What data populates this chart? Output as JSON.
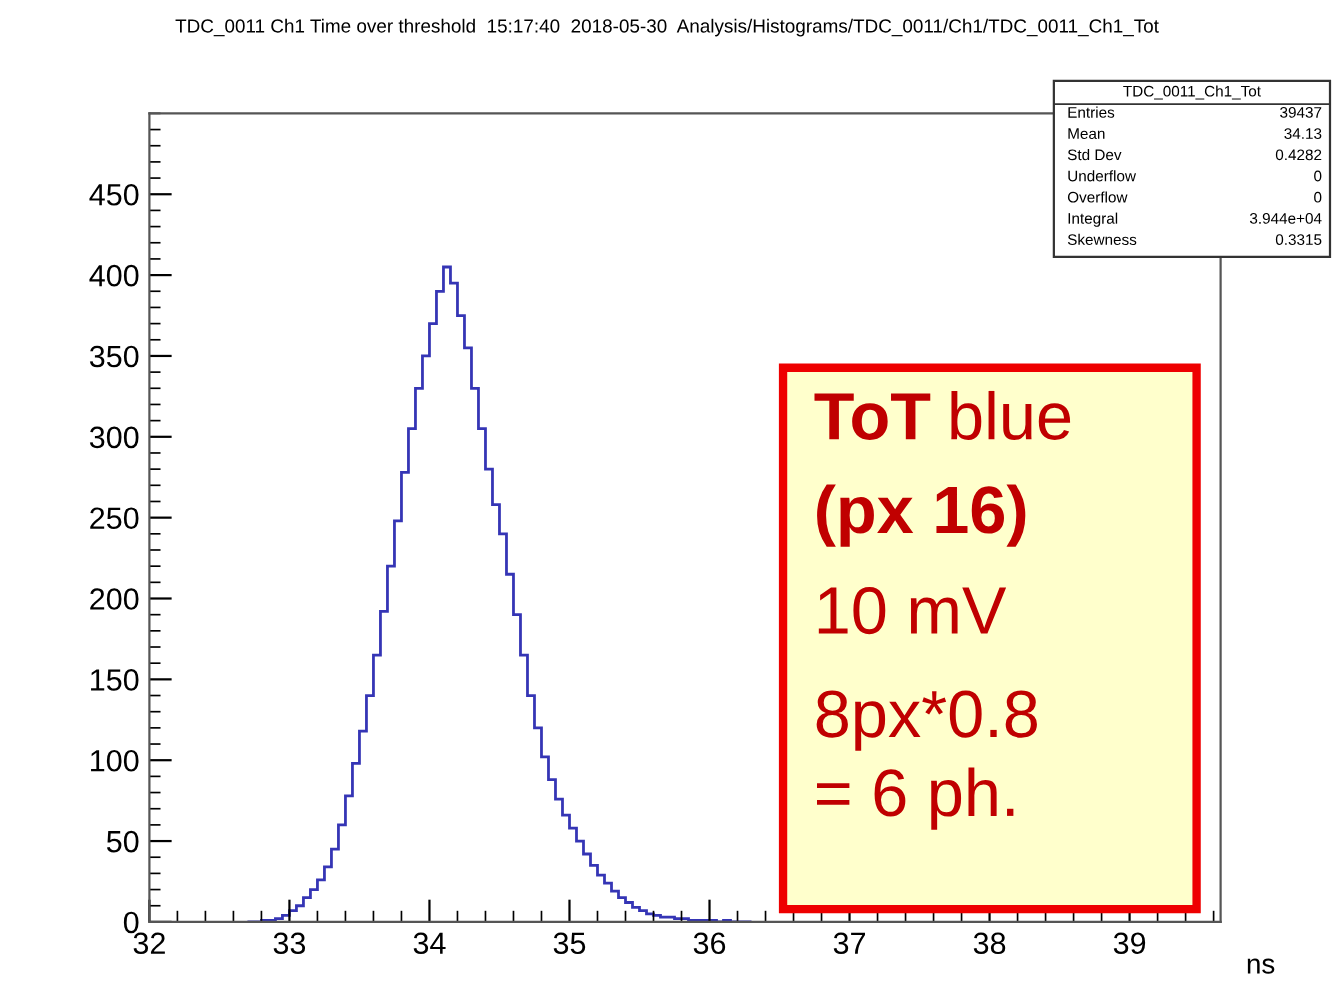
{
  "chart_data": {
    "type": "histogram",
    "title": "TDC_0011 Ch1 Time over threshold  15:17:40  2018-05-30  Analysis/Histograms/TDC_0011/Ch1/TDC_0011_Ch1_Tot",
    "xlabel": "ns",
    "bins": [
      32.7,
      32.75,
      32.8,
      32.85,
      32.9,
      32.95,
      33.0,
      33.05,
      33.1,
      33.15,
      33.2,
      33.25,
      33.3,
      33.35,
      33.4,
      33.45,
      33.5,
      33.55,
      33.6,
      33.65,
      33.7,
      33.75,
      33.8,
      33.85,
      33.9,
      33.95,
      34.0,
      34.05,
      34.1,
      34.15,
      34.2,
      34.25,
      34.3,
      34.35,
      34.4,
      34.45,
      34.5,
      34.55,
      34.6,
      34.65,
      34.7,
      34.75,
      34.8,
      34.85,
      34.9,
      34.95,
      35.0,
      35.05,
      35.1,
      35.15,
      35.2,
      35.25,
      35.3,
      35.35,
      35.4,
      35.45,
      35.5,
      35.55,
      35.6,
      35.65,
      35.7,
      35.75,
      35.8,
      35.85,
      35.9,
      35.95,
      36.0,
      36.05,
      36.1,
      36.15,
      36.2,
      36.25,
      36.3
    ],
    "values": [
      0,
      0,
      1,
      1,
      2,
      4,
      7,
      10,
      15,
      20,
      26,
      34,
      45,
      60,
      78,
      98,
      118,
      140,
      165,
      192,
      220,
      248,
      278,
      305,
      330,
      350,
      370,
      390,
      405,
      395,
      375,
      355,
      330,
      305,
      280,
      258,
      240,
      215,
      190,
      165,
      140,
      120,
      102,
      88,
      76,
      66,
      58,
      50,
      42,
      35,
      29,
      24,
      19,
      15,
      12,
      9,
      7,
      5,
      4,
      3,
      3,
      2,
      2,
      1,
      1,
      1,
      1,
      0,
      1,
      0,
      0,
      0
    ],
    "color": "#3535b5",
    "xlim": [
      32,
      39.65
    ],
    "ylim": [
      0,
      500
    ],
    "xticks": [
      32,
      33,
      34,
      35,
      36,
      37,
      38,
      39
    ],
    "yticks": [
      0,
      50,
      100,
      150,
      200,
      250,
      300,
      350,
      400,
      450
    ],
    "grid": false,
    "annotations": [
      "TDC_0011_Ch1_Tot",
      "Entries 39437",
      "Mean 34.13",
      "Std Dev 0.4282",
      "Underflow 0",
      "Overflow 0",
      "Integral 3.944e+04",
      "Skewness 0.3315",
      "ToT blue",
      "(px 16)",
      "10 mV",
      "8px*0.8",
      "= 6 ph."
    ]
  }
}
